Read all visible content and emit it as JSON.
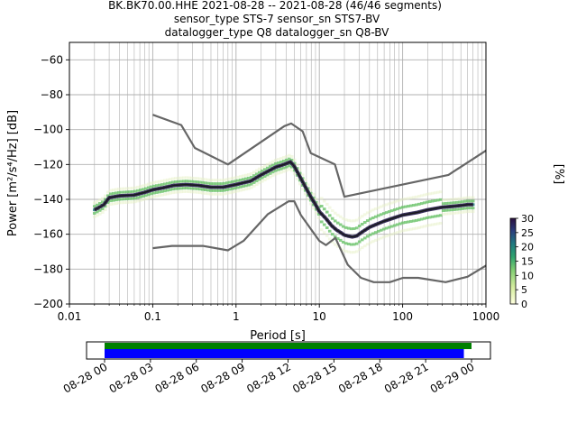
{
  "header": {
    "title_line1": "BK.BK70.00.HHE   2021-08-28 -- 2021-08-28  (46/46 segments)",
    "title_line2": "sensor_type STS-7 sensor_sn STS7-BV",
    "title_line3": "datalogger_type Q8 datalogger_sn Q8-BV"
  },
  "colors": {
    "median": "#1a1a1a",
    "noise_model": "#666666",
    "density_low": "#e8f2c8",
    "density_mid": "#6cc36a",
    "density_high": "#2b1a4a",
    "segment_green": "#008000",
    "segment_blue": "#0000ff"
  },
  "chart_data": [
    {
      "type": "line",
      "subtype": "ppsd",
      "xlabel": "Period [s]",
      "ylabel": "Power [m²/s⁴/Hz] [dB]",
      "xscale": "log",
      "xlim": [
        0.01,
        1000
      ],
      "ylim": [
        -200,
        -50
      ],
      "x_ticks": [
        0.01,
        0.1,
        1,
        10,
        100,
        1000
      ],
      "x_tick_labels": [
        "0.01",
        "0.1",
        "1",
        "10",
        "100",
        "1000"
      ],
      "y_ticks": [
        -200,
        -180,
        -160,
        -140,
        -120,
        -100,
        -80,
        -60
      ],
      "y_tick_labels": [
        "−200",
        "−180",
        "−160",
        "−140",
        "−120",
        "−100",
        "−80",
        "−60"
      ],
      "grid": true,
      "series": [
        {
          "role": "high-noise-model",
          "x": [
            0.1,
            0.22,
            0.32,
            0.8,
            3.8,
            4.6,
            6.3,
            7.9,
            15.4,
            20,
            354.8,
            1000
          ],
          "y": [
            -91.5,
            -97.4,
            -110.5,
            -120,
            -98,
            -96.5,
            -101,
            -113.5,
            -120,
            -138.5,
            -126,
            -112
          ]
        },
        {
          "role": "low-noise-model",
          "x": [
            0.1,
            0.17,
            0.4,
            0.8,
            1.24,
            2.4,
            4.3,
            5,
            6,
            10,
            12,
            15.6,
            21.9,
            31.6,
            45,
            70,
            101,
            154,
            328,
            600,
            1000
          ],
          "y": [
            -168,
            -166.7,
            -166.7,
            -169.2,
            -163.7,
            -148.6,
            -141.1,
            -141.1,
            -149,
            -163.8,
            -166.2,
            -162.1,
            -177.5,
            -185,
            -187.5,
            -187.5,
            -185,
            -185,
            -187.5,
            -184.4,
            -178
          ]
        },
        {
          "role": "median",
          "x": [
            0.02,
            0.022,
            0.026,
            0.03,
            0.04,
            0.06,
            0.08,
            0.1,
            0.13,
            0.18,
            0.25,
            0.35,
            0.5,
            0.7,
            1,
            1.5,
            2,
            2.5,
            3,
            3.5,
            4,
            4.5,
            5,
            6,
            7,
            8,
            9,
            10,
            12,
            14,
            16,
            18,
            20,
            22,
            25,
            28,
            32,
            40,
            50,
            60,
            80,
            100,
            150,
            200,
            300,
            400,
            500,
            600,
            700
          ],
          "y": [
            -146,
            -145,
            -143,
            -139,
            -138,
            -137.5,
            -136,
            -134.5,
            -133.5,
            -132,
            -131.5,
            -132,
            -133,
            -133,
            -131.5,
            -129.5,
            -126,
            -123.5,
            -121.5,
            -120.5,
            -119.5,
            -118.5,
            -121,
            -128,
            -134,
            -139,
            -143,
            -147,
            -151,
            -155,
            -157.5,
            -159,
            -160.5,
            -161,
            -161.5,
            -161,
            -159,
            -156,
            -154,
            -152.5,
            -150.5,
            -149,
            -147.5,
            -146,
            -144.5,
            -144,
            -143.5,
            -143,
            -143
          ]
        }
      ]
    },
    {
      "type": "bar",
      "subtype": "data-coverage-timeline",
      "x_tick_labels": [
        "08-28 00",
        "08-28 03",
        "08-28 06",
        "08-28 09",
        "08-28 12",
        "08-28 15",
        "08-28 18",
        "08-28 21",
        "08-29 00"
      ],
      "series": [
        {
          "role": "coverage-green",
          "start_hour": 0,
          "end_hour": 24.0
        },
        {
          "role": "coverage-blue",
          "start_hour": 0,
          "end_hour": 23.5
        }
      ]
    }
  ],
  "colorbar": {
    "label": "[%]",
    "range": [
      0,
      30
    ],
    "ticks": [
      "0",
      "5",
      "10",
      "15",
      "20",
      "25",
      "30"
    ]
  }
}
